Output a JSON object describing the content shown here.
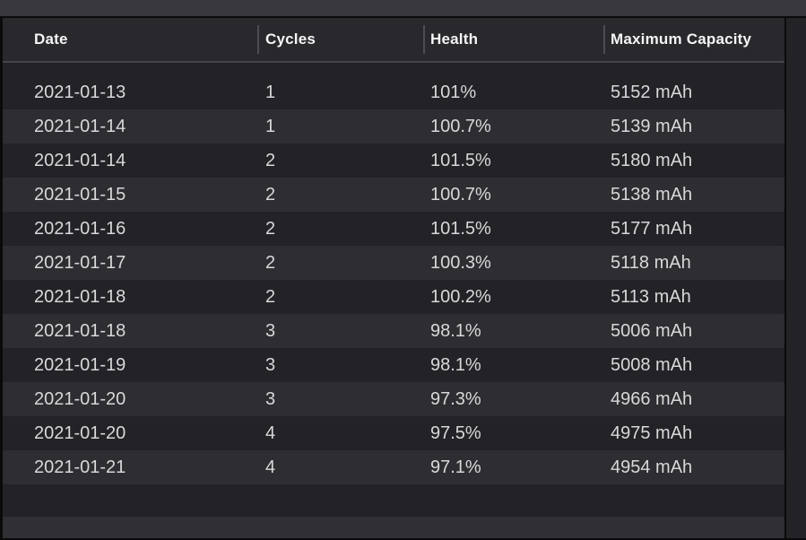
{
  "table": {
    "columns": [
      {
        "id": "date",
        "label": "Date"
      },
      {
        "id": "cycles",
        "label": "Cycles"
      },
      {
        "id": "health",
        "label": "Health"
      },
      {
        "id": "capacity",
        "label": "Maximum Capacity"
      }
    ],
    "rows": [
      {
        "date": "2021-01-13",
        "cycles": "1",
        "health": "101%",
        "capacity": "5152 mAh"
      },
      {
        "date": "2021-01-14",
        "cycles": "1",
        "health": "100.7%",
        "capacity": "5139 mAh"
      },
      {
        "date": "2021-01-14",
        "cycles": "2",
        "health": "101.5%",
        "capacity": "5180 mAh"
      },
      {
        "date": "2021-01-15",
        "cycles": "2",
        "health": "100.7%",
        "capacity": "5138 mAh"
      },
      {
        "date": "2021-01-16",
        "cycles": "2",
        "health": "101.5%",
        "capacity": "5177 mAh"
      },
      {
        "date": "2021-01-17",
        "cycles": "2",
        "health": "100.3%",
        "capacity": "5118 mAh"
      },
      {
        "date": "2021-01-18",
        "cycles": "2",
        "health": "100.2%",
        "capacity": "5113 mAh"
      },
      {
        "date": "2021-01-18",
        "cycles": "3",
        "health": "98.1%",
        "capacity": "5006 mAh"
      },
      {
        "date": "2021-01-19",
        "cycles": "3",
        "health": "98.1%",
        "capacity": "5008 mAh"
      },
      {
        "date": "2021-01-20",
        "cycles": "3",
        "health": "97.3%",
        "capacity": "4966 mAh"
      },
      {
        "date": "2021-01-20",
        "cycles": "4",
        "health": "97.5%",
        "capacity": "4975 mAh"
      },
      {
        "date": "2021-01-21",
        "cycles": "4",
        "health": "97.1%",
        "capacity": "4954 mAh"
      }
    ]
  },
  "colors": {
    "toolbar_bg": "#39383d",
    "header_bg": "#29282d",
    "row_odd": "#232227",
    "row_even": "#2e2d32",
    "bottom_bar_bg": "#302f34",
    "cell_text": "#d8d7d9",
    "header_text": "#f5f5f6"
  }
}
